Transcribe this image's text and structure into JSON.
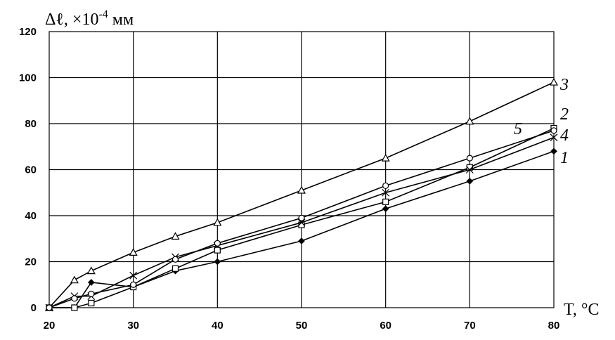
{
  "chart_data": {
    "type": "line",
    "ylabel": "Δℓ, ×10",
    "ylabel_exp": "-4",
    "ylabel_unit": " мм",
    "xlabel": "T, °С",
    "xlim": [
      20,
      80
    ],
    "ylim": [
      0,
      120
    ],
    "x_ticks": [
      20,
      30,
      40,
      50,
      60,
      70,
      80
    ],
    "y_ticks": [
      0,
      20,
      40,
      60,
      80,
      100,
      120
    ],
    "grid": true,
    "series": [
      {
        "name": "1",
        "marker": "diamond",
        "x": [
          20,
          23,
          25,
          30,
          35,
          40,
          50,
          60,
          70,
          80
        ],
        "y": [
          0,
          0,
          11,
          9,
          16,
          20,
          29,
          43,
          55,
          68
        ]
      },
      {
        "name": "2",
        "marker": "square",
        "x": [
          20,
          23,
          25,
          30,
          35,
          40,
          50,
          60,
          70,
          80
        ],
        "y": [
          0,
          0,
          2,
          9,
          17,
          25,
          36,
          46,
          61,
          78
        ]
      },
      {
        "name": "3",
        "marker": "triangle",
        "x": [
          20,
          23,
          25,
          30,
          35,
          40,
          50,
          60,
          70,
          80
        ],
        "y": [
          0,
          12,
          16,
          24,
          31,
          37,
          51,
          65,
          81,
          98
        ]
      },
      {
        "name": "4",
        "marker": "cross",
        "x": [
          20,
          23,
          25,
          30,
          35,
          40,
          50,
          60,
          70,
          80
        ],
        "y": [
          0,
          5,
          5,
          14,
          22,
          27,
          37,
          50,
          60,
          74
        ]
      },
      {
        "name": "5",
        "marker": "circle",
        "x": [
          20,
          23,
          25,
          30,
          35,
          40,
          50,
          60,
          70,
          80
        ],
        "y": [
          0,
          4,
          6,
          10,
          21,
          28,
          39,
          53,
          65,
          77
        ]
      }
    ]
  }
}
